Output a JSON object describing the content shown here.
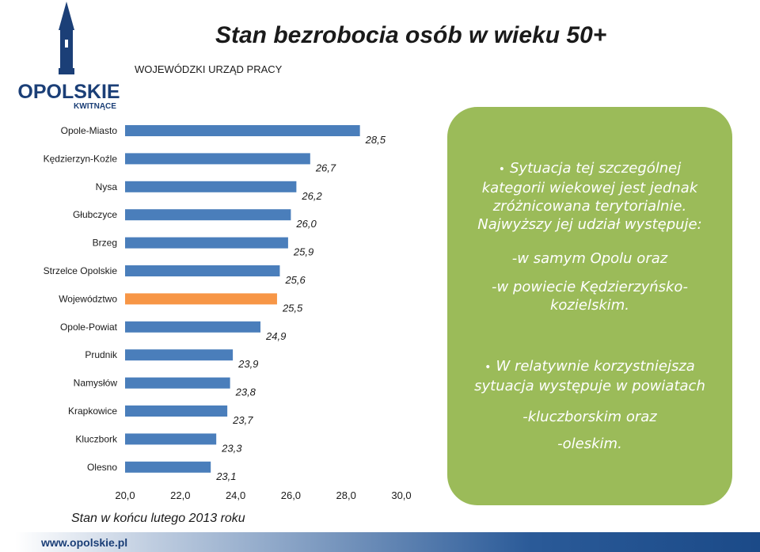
{
  "header": {
    "org": "WOJEWÓDZKI URZĄD PRACY",
    "title": "Stan bezrobocia osób w wieku 50+"
  },
  "logo": {
    "text": "OPOLSKIE",
    "tagline": "KWITNĄCE"
  },
  "chart_data": {
    "type": "bar",
    "orientation": "horizontal",
    "categories": [
      "Opole-Miasto",
      "Kędzierzyn-Koźle",
      "Nysa",
      "Głubczyce",
      "Brzeg",
      "Strzelce Opolskie",
      "Województwo",
      "Opole-Powiat",
      "Prudnik",
      "Namysłów",
      "Krapkowice",
      "Kluczbork",
      "Olesno"
    ],
    "values": [
      28.5,
      26.7,
      26.2,
      26.0,
      25.9,
      25.6,
      25.5,
      24.9,
      23.9,
      23.8,
      23.7,
      23.3,
      23.1
    ],
    "value_labels": [
      "28,5",
      "26,7",
      "26,2",
      "26,0",
      "25,9",
      "25,6",
      "25,5",
      "24,9",
      "23,9",
      "23,8",
      "23,7",
      "23,3",
      "23,1"
    ],
    "highlight_index": 6,
    "colors": {
      "bar": "#4a7ebb",
      "highlight": "#f79646"
    },
    "xlim": [
      20,
      30
    ],
    "xticks": [
      "20,0",
      "22,0",
      "24,0",
      "26,0",
      "28,0",
      "30,0"
    ],
    "grid": false
  },
  "footnote": "Stan w końcu lutego 2013 roku",
  "website": "www.opolskie.pl",
  "panel": {
    "color": "#9bbb59",
    "bullet1": [
      "Sytuacja tej szczególnej",
      "kategorii wiekowej jest jednak",
      "zróżnicowana terytorialnie.",
      "Najwyższy jej udział występuje:"
    ],
    "item1": "-w samym Opolu oraz",
    "item2": [
      "-w powiecie Kędzierzyńsko-",
      "kozielskim."
    ],
    "bullet2": [
      "W relatywnie korzystniejsza",
      "sytuacja występuje w powiatach"
    ],
    "item3": "-kluczborskim oraz",
    "item4": "-oleskim."
  }
}
